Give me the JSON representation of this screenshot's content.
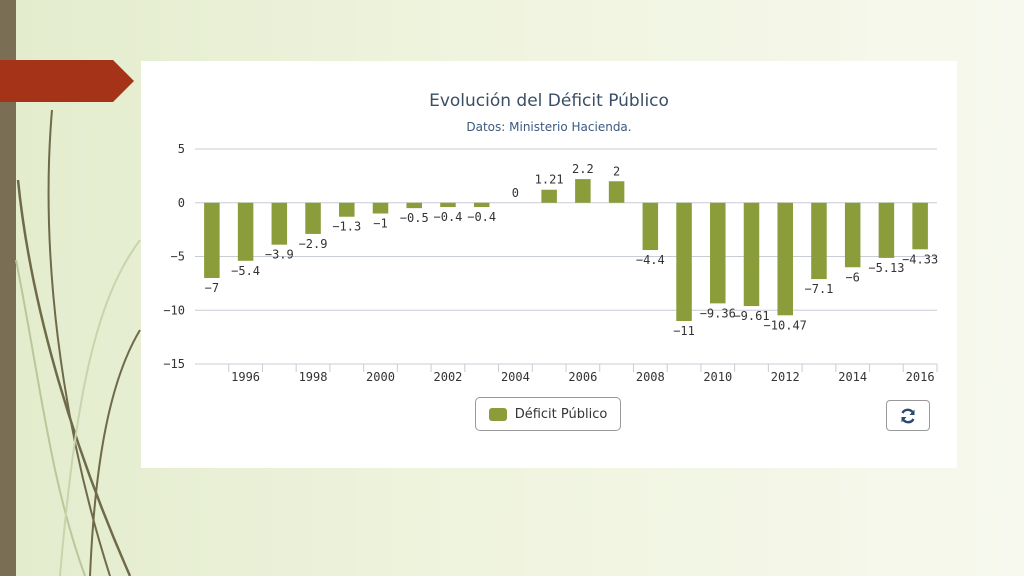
{
  "colors": {
    "bar": "#8a9d3a",
    "accent_red": "#a43318",
    "left_bar": "#7a6e55"
  },
  "legend": {
    "label": "Déficit Público",
    "icon": "legend-swatch"
  },
  "refresh": {
    "icon": "refresh-icon"
  },
  "chart_data": {
    "type": "bar",
    "title": "Evolución del Déficit Público",
    "subtitle": "Datos: Ministerio Hacienda.",
    "xlabel": "",
    "ylabel": "",
    "categories": [
      "1995",
      "1996",
      "1997",
      "1998",
      "1999",
      "2000",
      "2001",
      "2002",
      "2003",
      "2004",
      "2005",
      "2006",
      "2007",
      "2008",
      "2009",
      "2010",
      "2011",
      "2012",
      "2013",
      "2014",
      "2015",
      "2016"
    ],
    "series": [
      {
        "name": "Déficit Público",
        "values": [
          -7,
          -5.4,
          -3.9,
          -2.9,
          -1.3,
          -1,
          -0.5,
          -0.4,
          -0.4,
          0,
          1.21,
          2.2,
          2,
          -4.4,
          -11,
          -9.36,
          -9.61,
          -10.47,
          -7.1,
          -6,
          -5.13,
          -4.33
        ]
      }
    ],
    "ylim": [
      -15,
      5
    ],
    "yticks": [
      5,
      0,
      -5,
      -10,
      -15
    ],
    "xtick_labels": [
      "1996",
      "1998",
      "2000",
      "2002",
      "2004",
      "2006",
      "2008",
      "2010",
      "2012",
      "2014",
      "2016"
    ],
    "grid": true,
    "legend_position": "bottom-center"
  }
}
